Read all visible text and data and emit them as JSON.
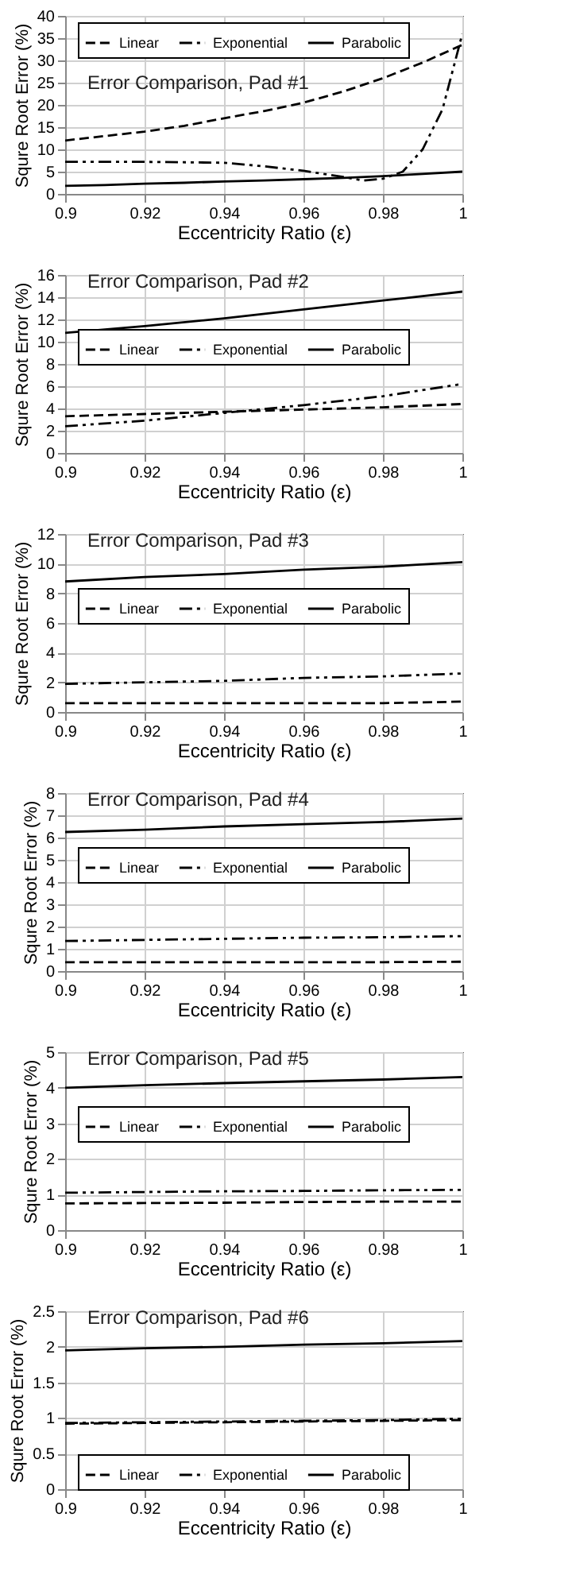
{
  "chart_data": [
    {
      "type": "line",
      "title": "Error Comparison, Pad #1",
      "xlabel": "Eccentricity Ratio (ε)",
      "ylabel": "Squre Root Error (%)",
      "x": [
        0.9,
        0.91,
        0.92,
        0.93,
        0.94,
        0.95,
        0.96,
        0.97,
        0.98,
        0.99,
        1
      ],
      "xlim": [
        0.9,
        1
      ],
      "xticks": [
        0.9,
        0.92,
        0.94,
        0.96,
        0.98,
        1
      ],
      "ylim": [
        0,
        40
      ],
      "yticks": [
        0,
        5,
        10,
        15,
        20,
        25,
        30,
        35,
        40
      ],
      "grid": true,
      "legend": "top",
      "marker": "none",
      "series": [
        {
          "name": "Linear",
          "color": "#000000",
          "line_style": "dashed",
          "values": [
            12,
            13,
            14,
            15.3,
            17,
            18.6,
            20.5,
            23,
            26,
            29.5,
            33.5
          ]
        },
        {
          "name": "Exponential",
          "color": "#000000",
          "line_style": "dotted",
          "x": [
            0.9,
            0.92,
            0.94,
            0.95,
            0.96,
            0.97,
            0.975,
            0.98,
            0.985,
            0.99,
            0.995,
            1
          ],
          "values": [
            7.2,
            7.2,
            7,
            6.2,
            5.2,
            3.8,
            3,
            3.4,
            5,
            10,
            19,
            36
          ]
        },
        {
          "name": "Parabolic",
          "color": "#000000",
          "line_style": "solid",
          "values": [
            1.8,
            2,
            2.3,
            2.5,
            2.8,
            3,
            3.3,
            3.6,
            4,
            4.5,
            5
          ]
        }
      ]
    },
    {
      "type": "line",
      "title": "Error Comparison, Pad #2",
      "xlabel": "Eccentricity Ratio (ε)",
      "ylabel": "Squre Root Error (%)",
      "x": [
        0.9,
        0.92,
        0.94,
        0.96,
        0.98,
        1
      ],
      "xlim": [
        0.9,
        1
      ],
      "xticks": [
        0.9,
        0.92,
        0.94,
        0.96,
        0.98,
        1
      ],
      "ylim": [
        0,
        16
      ],
      "yticks": [
        0,
        2,
        4,
        6,
        8,
        10,
        12,
        14,
        16
      ],
      "grid": true,
      "legend": "center",
      "marker": "none",
      "series": [
        {
          "name": "Linear",
          "color": "#000000",
          "line_style": "dashed",
          "values": [
            3.3,
            3.5,
            3.7,
            3.9,
            4.1,
            4.4
          ]
        },
        {
          "name": "Exponential",
          "color": "#000000",
          "line_style": "dotted",
          "values": [
            2.4,
            2.9,
            3.6,
            4.3,
            5.1,
            6.2
          ]
        },
        {
          "name": "Parabolic",
          "color": "#000000",
          "line_style": "solid",
          "values": [
            10.8,
            11.4,
            12.1,
            12.9,
            13.7,
            14.5
          ]
        }
      ]
    },
    {
      "type": "line",
      "title": "Error Comparison, Pad #3",
      "xlabel": "Eccentricity Ratio (ε)",
      "ylabel": "Squre Root Error (%)",
      "x": [
        0.9,
        0.92,
        0.94,
        0.96,
        0.98,
        1
      ],
      "xlim": [
        0.9,
        1
      ],
      "xticks": [
        0.9,
        0.92,
        0.94,
        0.96,
        0.98,
        1
      ],
      "ylim": [
        0,
        12
      ],
      "yticks": [
        0,
        2,
        4,
        6,
        8,
        10,
        12
      ],
      "grid": true,
      "legend": "center",
      "marker": "none",
      "series": [
        {
          "name": "Linear",
          "color": "#000000",
          "line_style": "dashed",
          "values": [
            0.6,
            0.6,
            0.6,
            0.6,
            0.6,
            0.7
          ]
        },
        {
          "name": "Exponential",
          "color": "#000000",
          "line_style": "dotted",
          "values": [
            1.9,
            2,
            2.1,
            2.3,
            2.4,
            2.6
          ]
        },
        {
          "name": "Parabolic",
          "color": "#000000",
          "line_style": "solid",
          "values": [
            8.8,
            9.1,
            9.3,
            9.6,
            9.8,
            10.1
          ]
        }
      ]
    },
    {
      "type": "line",
      "title": "Error Comparison, Pad #4",
      "xlabel": "Eccentricity Ratio (ε)",
      "ylabel": "Squre Root Error (%)",
      "x": [
        0.9,
        0.92,
        0.94,
        0.96,
        0.98,
        1
      ],
      "xlim": [
        0.9,
        1
      ],
      "xticks": [
        0.9,
        0.92,
        0.94,
        0.96,
        0.98,
        1
      ],
      "ylim": [
        0,
        8
      ],
      "yticks": [
        0,
        1,
        2,
        3,
        4,
        5,
        6,
        7,
        8
      ],
      "grid": true,
      "legend": "center",
      "marker": "none",
      "series": [
        {
          "name": "Linear",
          "color": "#000000",
          "line_style": "dashed",
          "values": [
            0.4,
            0.4,
            0.4,
            0.4,
            0.4,
            0.42
          ]
        },
        {
          "name": "Exponential",
          "color": "#000000",
          "line_style": "dotted",
          "values": [
            1.35,
            1.4,
            1.45,
            1.5,
            1.52,
            1.57
          ]
        },
        {
          "name": "Parabolic",
          "color": "#000000",
          "line_style": "solid",
          "values": [
            6.25,
            6.35,
            6.5,
            6.6,
            6.7,
            6.85
          ]
        }
      ]
    },
    {
      "type": "line",
      "title": "Error Comparison, Pad #5",
      "xlabel": "Eccentricity Ratio (ε)",
      "ylabel": "Squre Root Error (%)",
      "x": [
        0.9,
        0.92,
        0.94,
        0.96,
        0.98,
        1
      ],
      "xlim": [
        0.9,
        1
      ],
      "xticks": [
        0.9,
        0.92,
        0.94,
        0.96,
        0.98,
        1
      ],
      "ylim": [
        0,
        5
      ],
      "yticks": [
        0,
        1,
        2,
        3,
        4,
        5
      ],
      "grid": true,
      "legend": "center",
      "marker": "none",
      "series": [
        {
          "name": "Linear",
          "color": "#000000",
          "line_style": "dashed",
          "values": [
            0.75,
            0.76,
            0.77,
            0.79,
            0.8,
            0.8
          ]
        },
        {
          "name": "Exponential",
          "color": "#000000",
          "line_style": "dotted",
          "values": [
            1.05,
            1.07,
            1.09,
            1.1,
            1.12,
            1.13
          ]
        },
        {
          "name": "Parabolic",
          "color": "#000000",
          "line_style": "solid",
          "values": [
            4,
            4.07,
            4.13,
            4.18,
            4.23,
            4.3
          ]
        }
      ]
    },
    {
      "type": "line",
      "title": "Error Comparison, Pad #6",
      "xlabel": "Eccentricity Ratio (ε)",
      "ylabel": "Squre Root Error (%)",
      "x": [
        0.9,
        0.92,
        0.94,
        0.96,
        0.98,
        1
      ],
      "xlim": [
        0.9,
        1
      ],
      "xticks": [
        0.9,
        0.92,
        0.94,
        0.96,
        0.98,
        1
      ],
      "ylim": [
        0,
        2.5
      ],
      "yticks": [
        0,
        0.5,
        1,
        1.5,
        2,
        2.5
      ],
      "grid": true,
      "legend": "bottom",
      "marker": "none",
      "series": [
        {
          "name": "Linear",
          "color": "#000000",
          "line_style": "dashed",
          "values": [
            0.92,
            0.93,
            0.94,
            0.95,
            0.96,
            0.97
          ]
        },
        {
          "name": "Exponential",
          "color": "#000000",
          "line_style": "dotted",
          "values": [
            0.93,
            0.94,
            0.95,
            0.96,
            0.97,
            0.99
          ]
        },
        {
          "name": "Parabolic",
          "color": "#000000",
          "line_style": "solid",
          "values": [
            1.95,
            1.98,
            2,
            2.03,
            2.05,
            2.08
          ]
        }
      ]
    }
  ]
}
